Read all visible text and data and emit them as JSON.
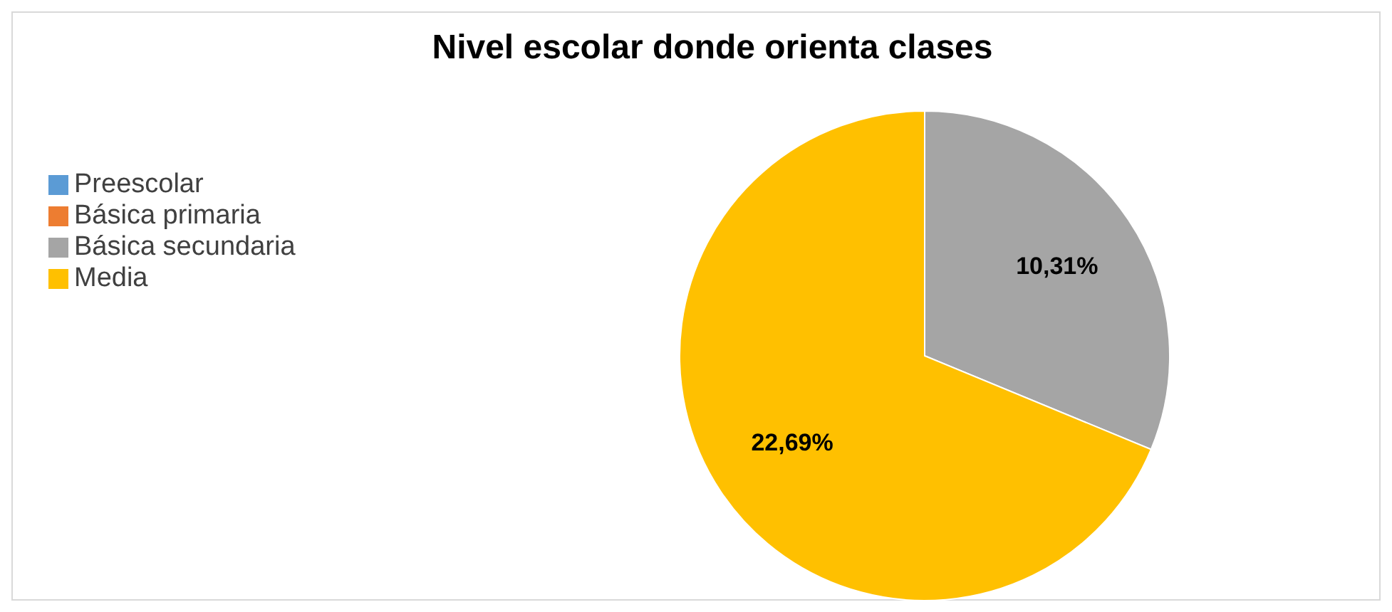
{
  "chart_data": {
    "type": "pie",
    "title": "Nivel escolar donde orienta clases",
    "categories": [
      "Preescolar",
      "Básica primaria",
      "Básica secundaria",
      "Media"
    ],
    "values": [
      0,
      0,
      10.31,
      22.69
    ],
    "colors": [
      "#5b9bd5",
      "#ed7d31",
      "#a5a5a5",
      "#ffc000"
    ],
    "value_labels": [
      null,
      null,
      "10,31%",
      "22,69%"
    ],
    "legend": "left"
  }
}
